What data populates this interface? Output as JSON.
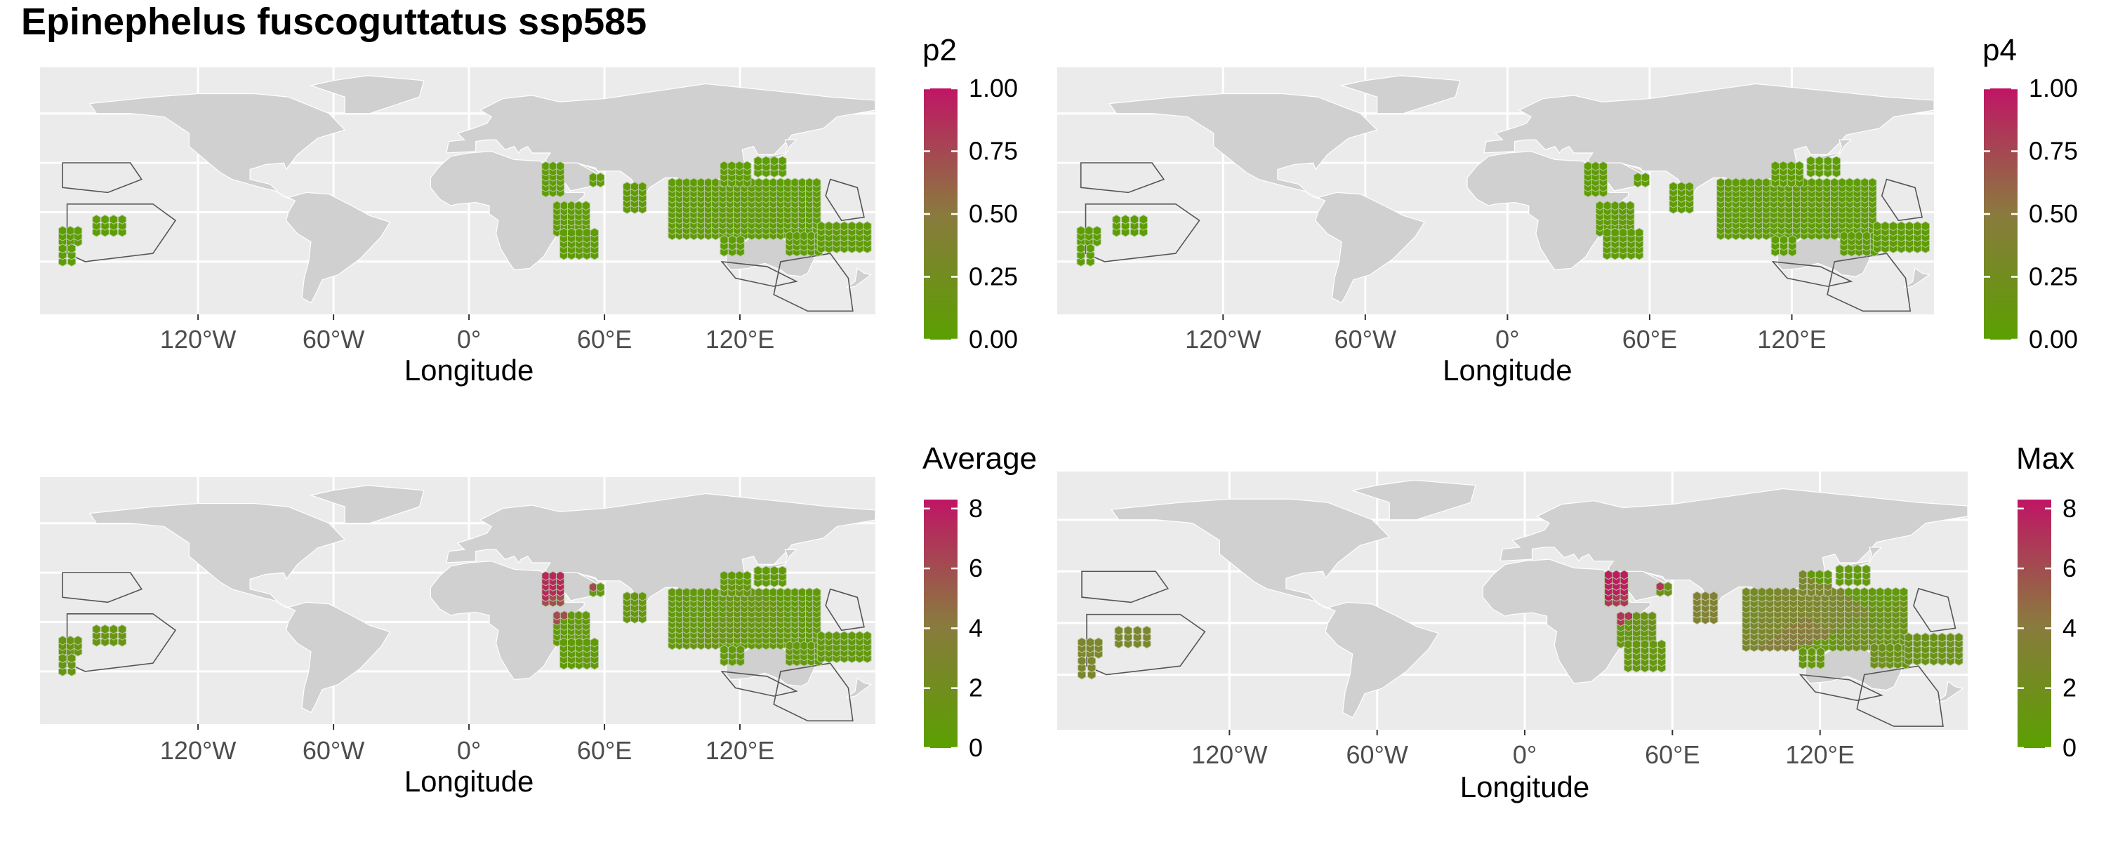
{
  "title": "Epinephelus fuscoguttatus ssp585",
  "colors": {
    "panel_bg": "#ebebeb",
    "grid": "#ffffff",
    "land": "#d0d0d0",
    "range_outline": "#555555",
    "cell_stroke": "#b8c9a0",
    "scale_low": "#5aa000",
    "scale_mid": "#8a7a3e",
    "scale_high": "#c01565"
  },
  "chart_data": [
    {
      "type": "heatmap",
      "name": "p2",
      "xlabel": "Longitude",
      "x_ticks": [
        "120°W",
        "60°W",
        "0°",
        "60°E",
        "120°E"
      ],
      "legend": {
        "title": "p2",
        "min": 0,
        "max": 1,
        "ticks": [
          "0.00",
          "0.25",
          "0.50",
          "0.75",
          "1.00"
        ],
        "tick_values": [
          0,
          0.25,
          0.5,
          0.75,
          1
        ]
      },
      "cells": [
        {
          "lon": 40,
          "lat": 20,
          "value": 0.05
        },
        {
          "lon": 45,
          "lat": -15,
          "value": 0.05
        },
        {
          "lon": 55,
          "lat": 5,
          "value": 0.05
        },
        {
          "lon": 72,
          "lat": 10,
          "value": 0.06
        },
        {
          "lon": 90,
          "lat": 12,
          "value": 0.05
        },
        {
          "lon": 105,
          "lat": 5,
          "value": 0.06
        },
        {
          "lon": 115,
          "lat": -5,
          "value": 0.08
        },
        {
          "lon": 125,
          "lat": 5,
          "value": 0.07
        },
        {
          "lon": 135,
          "lat": -8,
          "value": 0.06
        },
        {
          "lon": 150,
          "lat": -5,
          "value": 0.05
        },
        {
          "lon": 120,
          "lat": -15,
          "value": 0.04
        },
        {
          "lon": 140,
          "lat": 25,
          "value": 0.03
        },
        {
          "lon": -170,
          "lat": -10,
          "value": 0.03
        }
      ]
    },
    {
      "type": "heatmap",
      "name": "p4",
      "xlabel": "Longitude",
      "x_ticks": [
        "120°W",
        "60°W",
        "0°",
        "60°E",
        "120°E"
      ],
      "legend": {
        "title": "p4",
        "min": 0,
        "max": 1,
        "ticks": [
          "0.00",
          "0.25",
          "0.50",
          "0.75",
          "1.00"
        ],
        "tick_values": [
          0,
          0.25,
          0.5,
          0.75,
          1
        ]
      },
      "cells": [
        {
          "lon": 40,
          "lat": 20,
          "value": 0.05
        },
        {
          "lon": 45,
          "lat": -15,
          "value": 0.05
        },
        {
          "lon": 55,
          "lat": 5,
          "value": 0.05
        },
        {
          "lon": 72,
          "lat": 10,
          "value": 0.05
        },
        {
          "lon": 90,
          "lat": 12,
          "value": 0.05
        },
        {
          "lon": 105,
          "lat": 5,
          "value": 0.05
        },
        {
          "lon": 115,
          "lat": -5,
          "value": 0.07
        },
        {
          "lon": 125,
          "lat": 5,
          "value": 0.06
        },
        {
          "lon": 135,
          "lat": -8,
          "value": 0.05
        },
        {
          "lon": 150,
          "lat": -5,
          "value": 0.05
        },
        {
          "lon": 120,
          "lat": -15,
          "value": 0.04
        },
        {
          "lon": 140,
          "lat": 25,
          "value": 0.03
        },
        {
          "lon": -170,
          "lat": -10,
          "value": 0.03
        }
      ]
    },
    {
      "type": "heatmap",
      "name": "Average",
      "xlabel": "Longitude",
      "x_ticks": [
        "120°W",
        "60°W",
        "0°",
        "60°E",
        "120°E"
      ],
      "legend": {
        "title": "Average",
        "min": 0,
        "max": 8.3,
        "ticks": [
          "0",
          "2",
          "4",
          "6",
          "8"
        ],
        "tick_values": [
          0,
          2,
          4,
          6,
          8
        ]
      },
      "cells": [
        {
          "lon": 38,
          "lat": 20,
          "value": 7.5
        },
        {
          "lon": 42,
          "lat": 15,
          "value": 6.0
        },
        {
          "lon": 45,
          "lat": -15,
          "value": 0.6
        },
        {
          "lon": 55,
          "lat": 5,
          "value": 0.8
        },
        {
          "lon": 72,
          "lat": 10,
          "value": 1.0
        },
        {
          "lon": 90,
          "lat": 12,
          "value": 0.8
        },
        {
          "lon": 105,
          "lat": 5,
          "value": 0.9
        },
        {
          "lon": 115,
          "lat": -5,
          "value": 1.5
        },
        {
          "lon": 125,
          "lat": 5,
          "value": 1.2
        },
        {
          "lon": 135,
          "lat": -8,
          "value": 1.0
        },
        {
          "lon": 150,
          "lat": -5,
          "value": 0.8
        },
        {
          "lon": 120,
          "lat": -15,
          "value": 0.7
        },
        {
          "lon": 140,
          "lat": 25,
          "value": 0.5
        },
        {
          "lon": -170,
          "lat": -10,
          "value": 1.2
        }
      ]
    },
    {
      "type": "heatmap",
      "name": "Max",
      "xlabel": "Longitude",
      "x_ticks": [
        "120°W",
        "60°W",
        "0°",
        "60°E",
        "120°E"
      ],
      "legend": {
        "title": "Max",
        "min": 0,
        "max": 8.3,
        "ticks": [
          "0",
          "2",
          "4",
          "6",
          "8"
        ],
        "tick_values": [
          0,
          2,
          4,
          6,
          8
        ]
      },
      "cells": [
        {
          "lon": 38,
          "lat": 20,
          "value": 8.0
        },
        {
          "lon": 42,
          "lat": 15,
          "value": 7.0
        },
        {
          "lon": 45,
          "lat": -15,
          "value": 1.0
        },
        {
          "lon": 55,
          "lat": 5,
          "value": 1.5
        },
        {
          "lon": 72,
          "lat": 10,
          "value": 3.5
        },
        {
          "lon": 90,
          "lat": 12,
          "value": 2.5
        },
        {
          "lon": 105,
          "lat": 5,
          "value": 3.0
        },
        {
          "lon": 115,
          "lat": -5,
          "value": 4.0
        },
        {
          "lon": 125,
          "lat": 5,
          "value": 3.0
        },
        {
          "lon": 135,
          "lat": -8,
          "value": 2.0
        },
        {
          "lon": 150,
          "lat": -5,
          "value": 1.5
        },
        {
          "lon": 120,
          "lat": -15,
          "value": 1.0
        },
        {
          "lon": 140,
          "lat": 25,
          "value": 0.8
        },
        {
          "lon": -170,
          "lat": -10,
          "value": 3.0
        }
      ]
    }
  ]
}
